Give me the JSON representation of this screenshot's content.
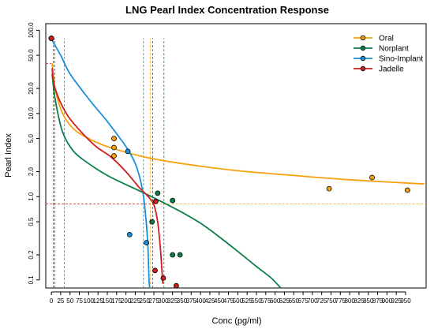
{
  "chart_data": {
    "type": "scatter",
    "title": "LNG Pearl Index Concentration Response",
    "xlabel": "Conc (pg/ml)",
    "ylabel": "Pearl Index",
    "x_scale": "linear",
    "y_scale": "log",
    "xlim": [
      -15,
      1005
    ],
    "ylim": [
      0.08,
      120
    ],
    "x_ticks": [
      0,
      25,
      50,
      75,
      100,
      125,
      150,
      175,
      200,
      225,
      250,
      275,
      300,
      325,
      350,
      375,
      400,
      425,
      450,
      475,
      500,
      525,
      550,
      575,
      600,
      625,
      650,
      675,
      700,
      725,
      750,
      775,
      800,
      825,
      850,
      875,
      900,
      925,
      950
    ],
    "y_ticks": [
      0.1,
      0.2,
      0.5,
      1.0,
      2.0,
      5.0,
      10.0,
      20.0,
      50.0,
      100.0
    ],
    "y_tick_labels": [
      "0.1",
      "0.2",
      "0.5",
      "1.0",
      "2.0",
      "5.0",
      "10.0",
      "20.0",
      "50.0",
      "100.0"
    ],
    "grid": false,
    "legend_position": "top-right",
    "series": [
      {
        "name": "Oral",
        "color": "#F5A10E",
        "points": [
          [
            0,
            80
          ],
          [
            168,
            5.0
          ],
          [
            168,
            3.9
          ],
          [
            168,
            3.1
          ],
          [
            745,
            1.25
          ],
          [
            860,
            1.7
          ],
          [
            955,
            1.2
          ]
        ],
        "curve": [
          [
            2,
            40
          ],
          [
            10,
            20
          ],
          [
            30,
            10
          ],
          [
            60,
            6.5
          ],
          [
            100,
            5
          ],
          [
            150,
            4
          ],
          [
            250,
            3.0
          ],
          [
            350,
            2.5
          ],
          [
            500,
            2.05
          ],
          [
            650,
            1.8
          ],
          [
            800,
            1.6
          ],
          [
            1000,
            1.42
          ]
        ]
      },
      {
        "name": "Norplant",
        "color": "#0A8048",
        "points": [
          [
            0,
            80
          ],
          [
            285,
            1.1
          ],
          [
            270,
            0.5
          ],
          [
            325,
            0.9
          ],
          [
            325,
            0.2
          ],
          [
            345,
            0.2
          ]
        ],
        "curve": [
          [
            2,
            30
          ],
          [
            10,
            15
          ],
          [
            30,
            6
          ],
          [
            60,
            3.5
          ],
          [
            100,
            2.5
          ],
          [
            150,
            1.8
          ],
          [
            200,
            1.4
          ],
          [
            250,
            1.1
          ],
          [
            300,
            0.85
          ],
          [
            350,
            0.65
          ],
          [
            400,
            0.48
          ],
          [
            450,
            0.33
          ],
          [
            500,
            0.22
          ],
          [
            550,
            0.145
          ],
          [
            590,
            0.105
          ],
          [
            615,
            0.08
          ]
        ]
      },
      {
        "name": "Sino-Implant",
        "color": "#1A90DC",
        "points": [
          [
            0,
            80
          ],
          [
            205,
            3.5
          ],
          [
            210,
            0.35
          ],
          [
            255,
            0.28
          ]
        ],
        "curve": [
          [
            0,
            78
          ],
          [
            25,
            50
          ],
          [
            50,
            30
          ],
          [
            100,
            15
          ],
          [
            150,
            8
          ],
          [
            200,
            4
          ],
          [
            225,
            2.5
          ],
          [
            240,
            1.5
          ],
          [
            250,
            0.8
          ],
          [
            258,
            0.3
          ],
          [
            262,
            0.1
          ],
          [
            264,
            0.08
          ]
        ]
      },
      {
        "name": "Jadelle",
        "color": "#D01C1C",
        "points": [
          [
            0,
            80
          ],
          [
            280,
            0.88
          ],
          [
            278,
            0.13
          ],
          [
            300,
            0.105
          ],
          [
            335,
            0.085
          ]
        ],
        "curve": [
          [
            2,
            35
          ],
          [
            10,
            20
          ],
          [
            40,
            10
          ],
          [
            80,
            6
          ],
          [
            120,
            4
          ],
          [
            160,
            3
          ],
          [
            200,
            2.0
          ],
          [
            235,
            1.3
          ],
          [
            260,
            1.0
          ],
          [
            275,
            0.8
          ],
          [
            285,
            0.5
          ],
          [
            292,
            0.25
          ],
          [
            297,
            0.12
          ],
          [
            299,
            0.09
          ]
        ]
      }
    ],
    "reference_lines": [
      {
        "color": "#D01C1C",
        "orientation": "h",
        "value": 40,
        "x_to": 0
      },
      {
        "color": "#D01C1C",
        "orientation": "h",
        "value": 0.82,
        "x_to": 270
      },
      {
        "color": "#F5A10E",
        "orientation": "h",
        "value": 0.82,
        "x_from": 270,
        "x_to": 1005
      },
      {
        "color": "#0A8048",
        "orientation": "v",
        "value": 5
      },
      {
        "color": "#D01C1C",
        "orientation": "v",
        "value": 9
      },
      {
        "color": "#1A90DC",
        "orientation": "v",
        "value": 35
      },
      {
        "color": "#1A90DC",
        "orientation": "v",
        "value": 247
      },
      {
        "color": "#F5A10E",
        "orientation": "v",
        "value": 265
      },
      {
        "color": "#D01C1C",
        "orientation": "v",
        "value": 272
      },
      {
        "color": "#0A8048",
        "orientation": "v",
        "value": 302
      }
    ]
  }
}
